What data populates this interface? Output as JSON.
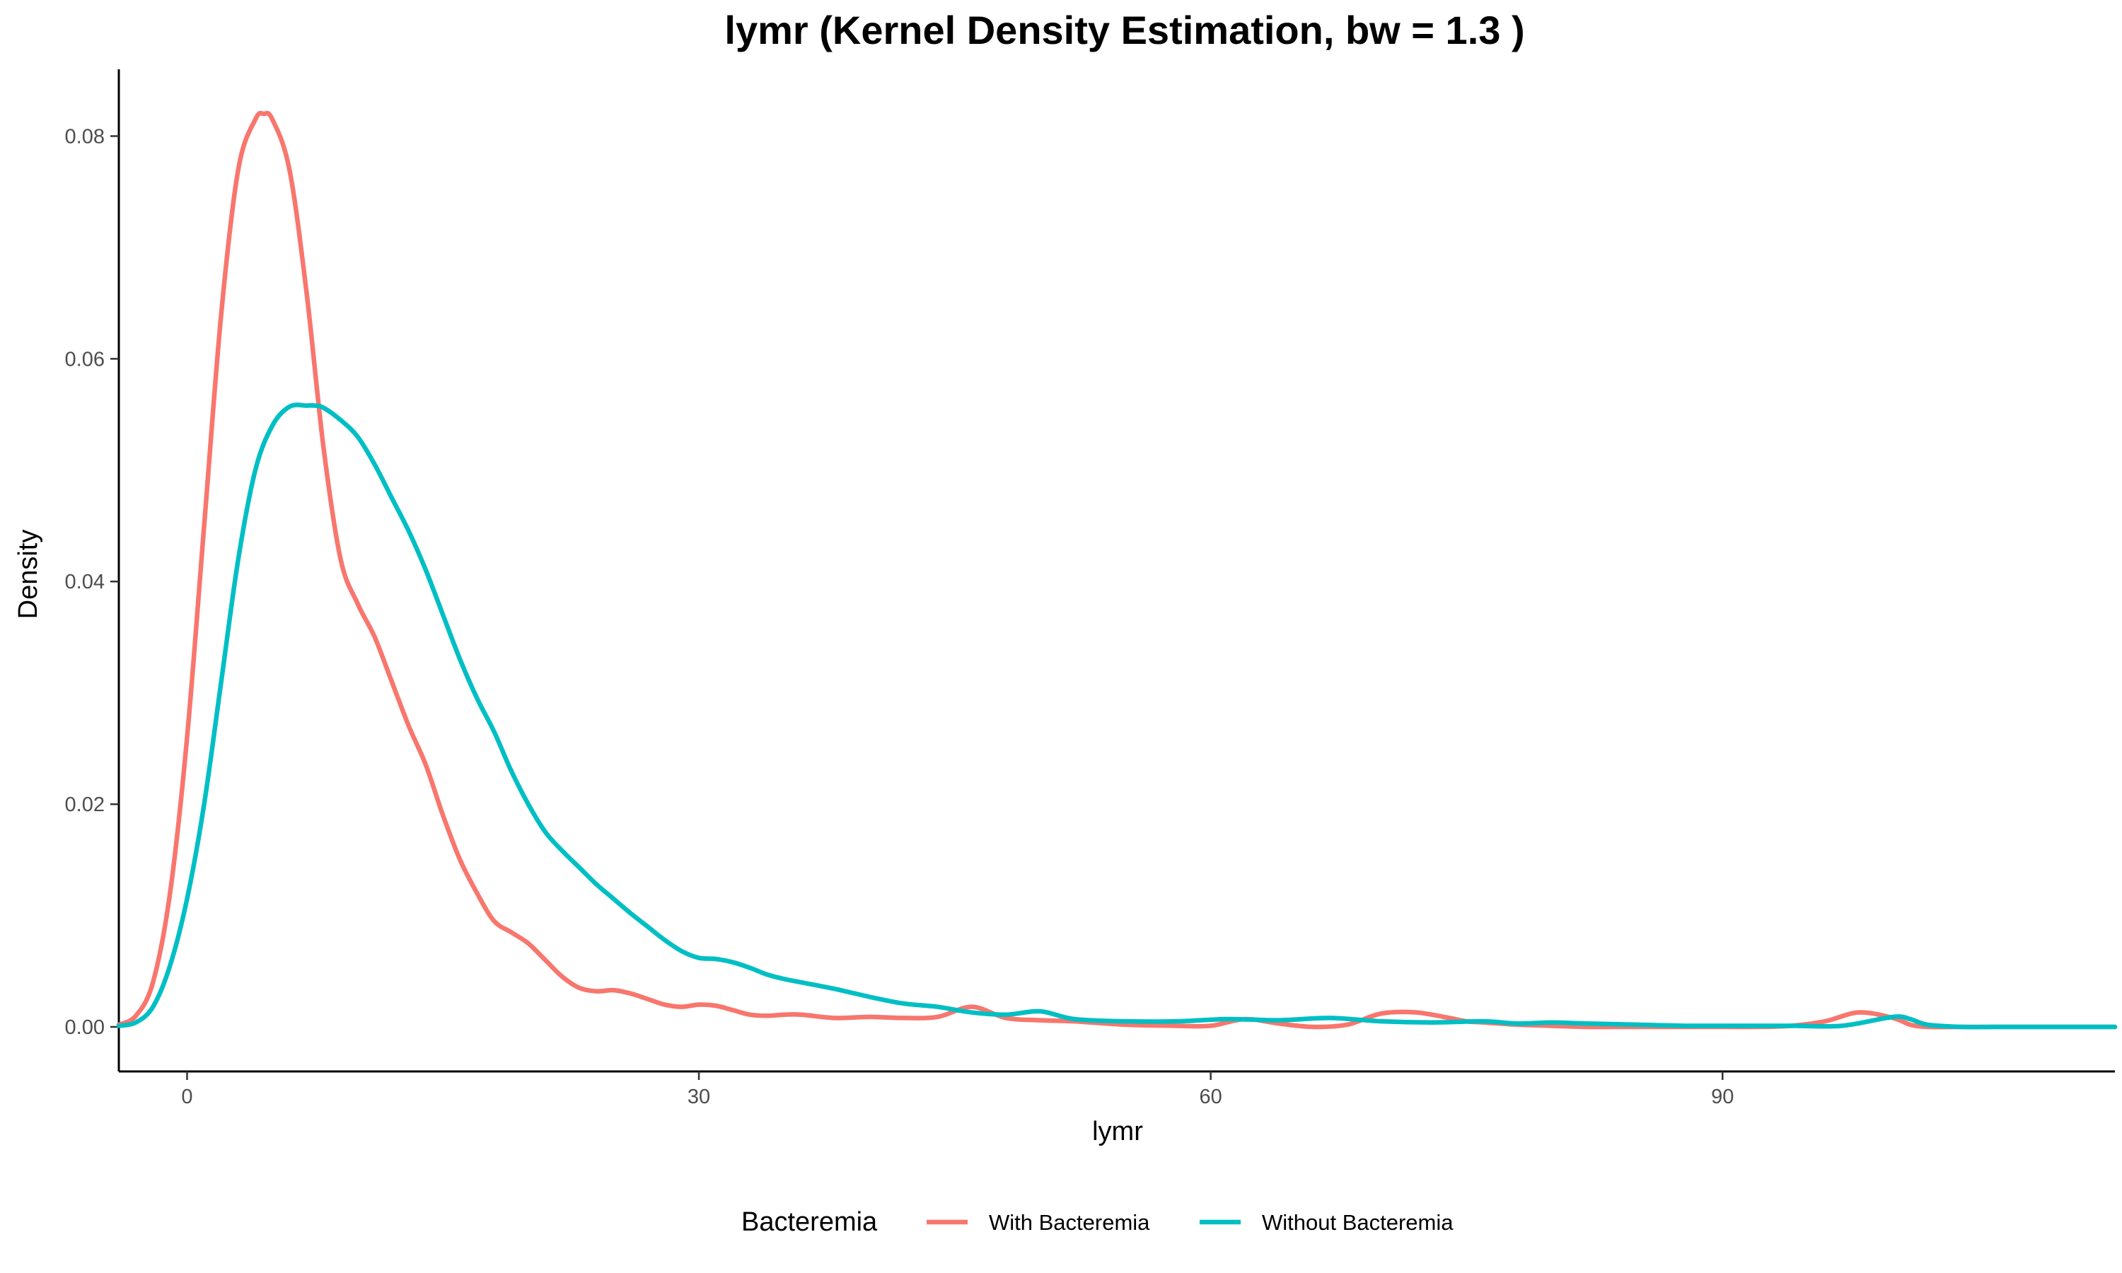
{
  "chart_data": {
    "type": "line",
    "title": "lymr (Kernel Density Estimation, bw = 1.3 )",
    "xlabel": "lymr",
    "ylabel": "Density",
    "xlim": [
      -4,
      113
    ],
    "ylim": [
      -0.004,
      0.086
    ],
    "x_ticks": [
      0,
      30,
      60,
      90
    ],
    "x_tick_labels": [
      "0",
      "30",
      "60",
      "90"
    ],
    "y_ticks": [
      0.0,
      0.02,
      0.04,
      0.06,
      0.08
    ],
    "y_tick_labels": [
      "0.00",
      "0.02",
      "0.04",
      "0.06",
      "0.08"
    ],
    "grid": false,
    "legend": {
      "title": "Bacteremia",
      "position": "bottom"
    },
    "series": [
      {
        "name": "With Bacteremia",
        "color": "#F8766D",
        "x": [
          -4,
          -3,
          -2,
          -1,
          0,
          1,
          2,
          3,
          4,
          4.5,
          5,
          6,
          7,
          8,
          9,
          10,
          11,
          12,
          13,
          14,
          15,
          16,
          17,
          18,
          19,
          20,
          21,
          22,
          23,
          24,
          25,
          26,
          27,
          28,
          29,
          30,
          31,
          32,
          33,
          34,
          35,
          36,
          38,
          40,
          42,
          44,
          46,
          48,
          50,
          52,
          55,
          58,
          60,
          62,
          64,
          66,
          68,
          70,
          72,
          74,
          75,
          76,
          78,
          80,
          82,
          84,
          86,
          88,
          90,
          92,
          94,
          96,
          98,
          100,
          101,
          102,
          104,
          106,
          108,
          110,
          113
        ],
        "y": [
          0.0002,
          0.001,
          0.004,
          0.012,
          0.026,
          0.045,
          0.064,
          0.077,
          0.0815,
          0.082,
          0.0815,
          0.077,
          0.066,
          0.052,
          0.042,
          0.038,
          0.035,
          0.031,
          0.027,
          0.0235,
          0.019,
          0.015,
          0.012,
          0.0095,
          0.0085,
          0.0075,
          0.006,
          0.0045,
          0.0035,
          0.0032,
          0.0033,
          0.003,
          0.0025,
          0.002,
          0.0018,
          0.002,
          0.0019,
          0.0015,
          0.0011,
          0.001,
          0.0011,
          0.0011,
          0.0008,
          0.0009,
          0.0008,
          0.0009,
          0.0018,
          0.0008,
          0.0006,
          0.0005,
          0.0002,
          0.0001,
          0.0001,
          0.0007,
          0.0003,
          0.0,
          0.0002,
          0.0012,
          0.0013,
          0.0008,
          0.0005,
          0.0004,
          0.0002,
          0.0001,
          0.0,
          0.0,
          0.0,
          0.0,
          0.0,
          0.0,
          0.0001,
          0.0005,
          0.0013,
          0.0008,
          0.0002,
          0.0,
          0.0,
          0.0,
          0.0,
          0.0,
          0.0
        ]
      },
      {
        "name": "Without Bacteremia",
        "color": "#00BFC4",
        "x": [
          -4,
          -3,
          -2,
          -1,
          0,
          1,
          2,
          3,
          4,
          5,
          6,
          7,
          7.5,
          8,
          9,
          10,
          11,
          12,
          13,
          14,
          15,
          16,
          17,
          18,
          19,
          20,
          21,
          22,
          23,
          24,
          25,
          26,
          27,
          28,
          29,
          30,
          31,
          32,
          33,
          34,
          35,
          36,
          38,
          40,
          42,
          44,
          46,
          48,
          50,
          52,
          55,
          58,
          61,
          64,
          67,
          70,
          73,
          76,
          78,
          80,
          82,
          85,
          88,
          91,
          94,
          97,
          100,
          101,
          102,
          104,
          106,
          108,
          110,
          113
        ],
        "y": [
          0.0001,
          0.0004,
          0.0018,
          0.0055,
          0.0115,
          0.02,
          0.031,
          0.042,
          0.05,
          0.054,
          0.0557,
          0.0558,
          0.0558,
          0.0556,
          0.0545,
          0.053,
          0.0505,
          0.0475,
          0.0445,
          0.041,
          0.037,
          0.033,
          0.0295,
          0.0265,
          0.023,
          0.02,
          0.0175,
          0.0158,
          0.0143,
          0.0128,
          0.0115,
          0.0102,
          0.009,
          0.0078,
          0.0068,
          0.0062,
          0.0061,
          0.0058,
          0.0053,
          0.0047,
          0.0043,
          0.004,
          0.0034,
          0.0027,
          0.0021,
          0.0018,
          0.0013,
          0.0011,
          0.0014,
          0.0007,
          0.0005,
          0.0005,
          0.0007,
          0.0006,
          0.0008,
          0.0005,
          0.0004,
          0.0005,
          0.0003,
          0.0004,
          0.0003,
          0.0002,
          0.0001,
          0.0001,
          0.0001,
          0.0001,
          0.0009,
          0.0007,
          0.0002,
          0.0,
          0.0,
          0.0,
          0.0,
          0.0
        ]
      }
    ]
  }
}
